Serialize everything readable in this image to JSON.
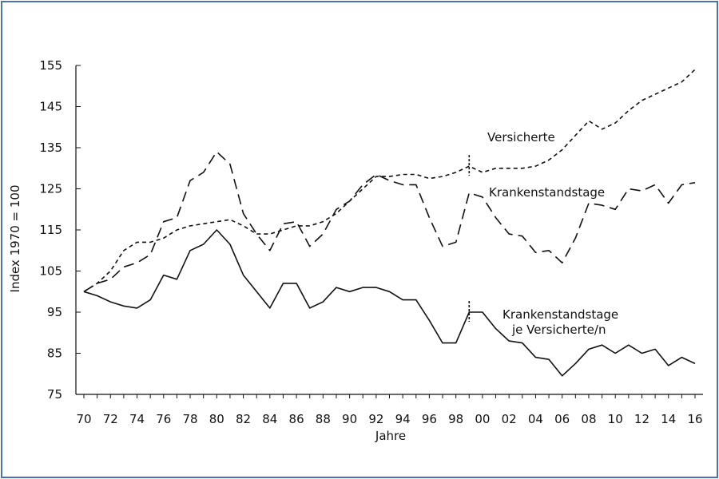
{
  "chart_data": {
    "type": "line",
    "xlabel": "Jahre",
    "ylabel": "Index 1970 = 100",
    "ylim": [
      75,
      155
    ],
    "xlim": [
      1970,
      2016
    ],
    "y_ticks": [
      "75",
      "85",
      "95",
      "105",
      "115",
      "125",
      "135",
      "145",
      "155"
    ],
    "x_ticks": [
      {
        "year": 1970,
        "label": "70"
      },
      {
        "year": 1972,
        "label": "72"
      },
      {
        "year": 1974,
        "label": "74"
      },
      {
        "year": 1976,
        "label": "76"
      },
      {
        "year": 1978,
        "label": "78"
      },
      {
        "year": 1980,
        "label": "80"
      },
      {
        "year": 1982,
        "label": "82"
      },
      {
        "year": 1984,
        "label": "84"
      },
      {
        "year": 1986,
        "label": "86"
      },
      {
        "year": 1988,
        "label": "88"
      },
      {
        "year": 1990,
        "label": "90"
      },
      {
        "year": 1992,
        "label": "92"
      },
      {
        "year": 1994,
        "label": "94"
      },
      {
        "year": 1996,
        "label": "96"
      },
      {
        "year": 1998,
        "label": "98"
      },
      {
        "year": 2000,
        "label": "00"
      },
      {
        "year": 2002,
        "label": "02"
      },
      {
        "year": 2004,
        "label": "04"
      },
      {
        "year": 2006,
        "label": "06"
      },
      {
        "year": 2008,
        "label": "08"
      },
      {
        "year": 2010,
        "label": "10"
      },
      {
        "year": 2012,
        "label": "12"
      },
      {
        "year": 2014,
        "label": "14"
      },
      {
        "year": 2016,
        "label": "16"
      }
    ],
    "grid": false,
    "break_year": 1999,
    "series": [
      {
        "name": "Versicherte",
        "style": "short-dash",
        "x": [
          1970,
          1971,
          1972,
          1973,
          1974,
          1975,
          1976,
          1977,
          1978,
          1979,
          1980,
          1981,
          1982,
          1983,
          1984,
          1985,
          1986,
          1987,
          1988,
          1989,
          1990,
          1991,
          1992,
          1993,
          1994,
          1995,
          1996,
          1997,
          1998,
          1999,
          2000,
          2001,
          2002,
          2003,
          2004,
          2005,
          2006,
          2007,
          2008,
          2009,
          2010,
          2011,
          2012,
          2013,
          2014,
          2015,
          2016
        ],
        "values": [
          100,
          102,
          105,
          110,
          112,
          112,
          113,
          115,
          116,
          116.5,
          117,
          117.5,
          116,
          114,
          114,
          115,
          116,
          116,
          117,
          119,
          122,
          125,
          128,
          128,
          128.5,
          128.5,
          127.5,
          128,
          129,
          130.5,
          129,
          130,
          130,
          130,
          130.5,
          132,
          134.5,
          138,
          141.5,
          139.5,
          141,
          144,
          146.5,
          148,
          149.5,
          151,
          154
        ]
      },
      {
        "name": "Krankenstandstage",
        "style": "long-dash",
        "x": [
          1970,
          1971,
          1972,
          1973,
          1974,
          1975,
          1976,
          1977,
          1978,
          1979,
          1980,
          1981,
          1982,
          1983,
          1984,
          1985,
          1986,
          1987,
          1988,
          1989,
          1990,
          1991,
          1992,
          1993,
          1994,
          1995,
          1996,
          1997,
          1998,
          1999,
          2000,
          2001,
          2002,
          2003,
          2004,
          2005,
          2006,
          2007,
          2008,
          2009,
          2010,
          2011,
          2012,
          2013,
          2014,
          2015,
          2016
        ],
        "values": [
          100,
          102,
          103,
          106,
          107,
          109,
          117,
          118,
          127,
          129,
          134,
          131,
          119,
          114,
          110,
          116.5,
          117,
          111,
          114,
          120,
          122,
          126,
          128.5,
          127,
          126,
          126,
          118,
          111,
          112,
          124,
          123,
          118,
          114,
          113.5,
          109.5,
          110,
          107,
          113,
          121.5,
          121,
          120,
          125,
          124.5,
          126,
          121.5,
          126,
          126.5
        ]
      },
      {
        "name": "Krankenstandstage je Versicherte/n",
        "style": "solid",
        "x": [
          1970,
          1971,
          1972,
          1973,
          1974,
          1975,
          1976,
          1977,
          1978,
          1979,
          1980,
          1981,
          1982,
          1983,
          1984,
          1985,
          1986,
          1987,
          1988,
          1989,
          1990,
          1991,
          1992,
          1993,
          1994,
          1995,
          1996,
          1997,
          1998,
          1999,
          2000,
          2001,
          2002,
          2003,
          2004,
          2005,
          2006,
          2007,
          2008,
          2009,
          2010,
          2011,
          2012,
          2013,
          2014,
          2015,
          2016
        ],
        "values": [
          100,
          99,
          97.5,
          96.5,
          96,
          98,
          104,
          103,
          110,
          111.5,
          115,
          111.5,
          104,
          100,
          96,
          102,
          102,
          96,
          97.5,
          101,
          100,
          101,
          101,
          100,
          98,
          98,
          93,
          87.5,
          87.5,
          95,
          95,
          91,
          88,
          87.5,
          84,
          83.5,
          79.5,
          82.5,
          86,
          87,
          85,
          87,
          85,
          86,
          82,
          84,
          82.5
        ]
      }
    ],
    "annotations": [
      {
        "text": "Versicherte"
      },
      {
        "text": "Krankenstandstage"
      },
      {
        "lines": [
          "Krankenstandstage",
          "je Versicherte/n"
        ]
      }
    ]
  }
}
